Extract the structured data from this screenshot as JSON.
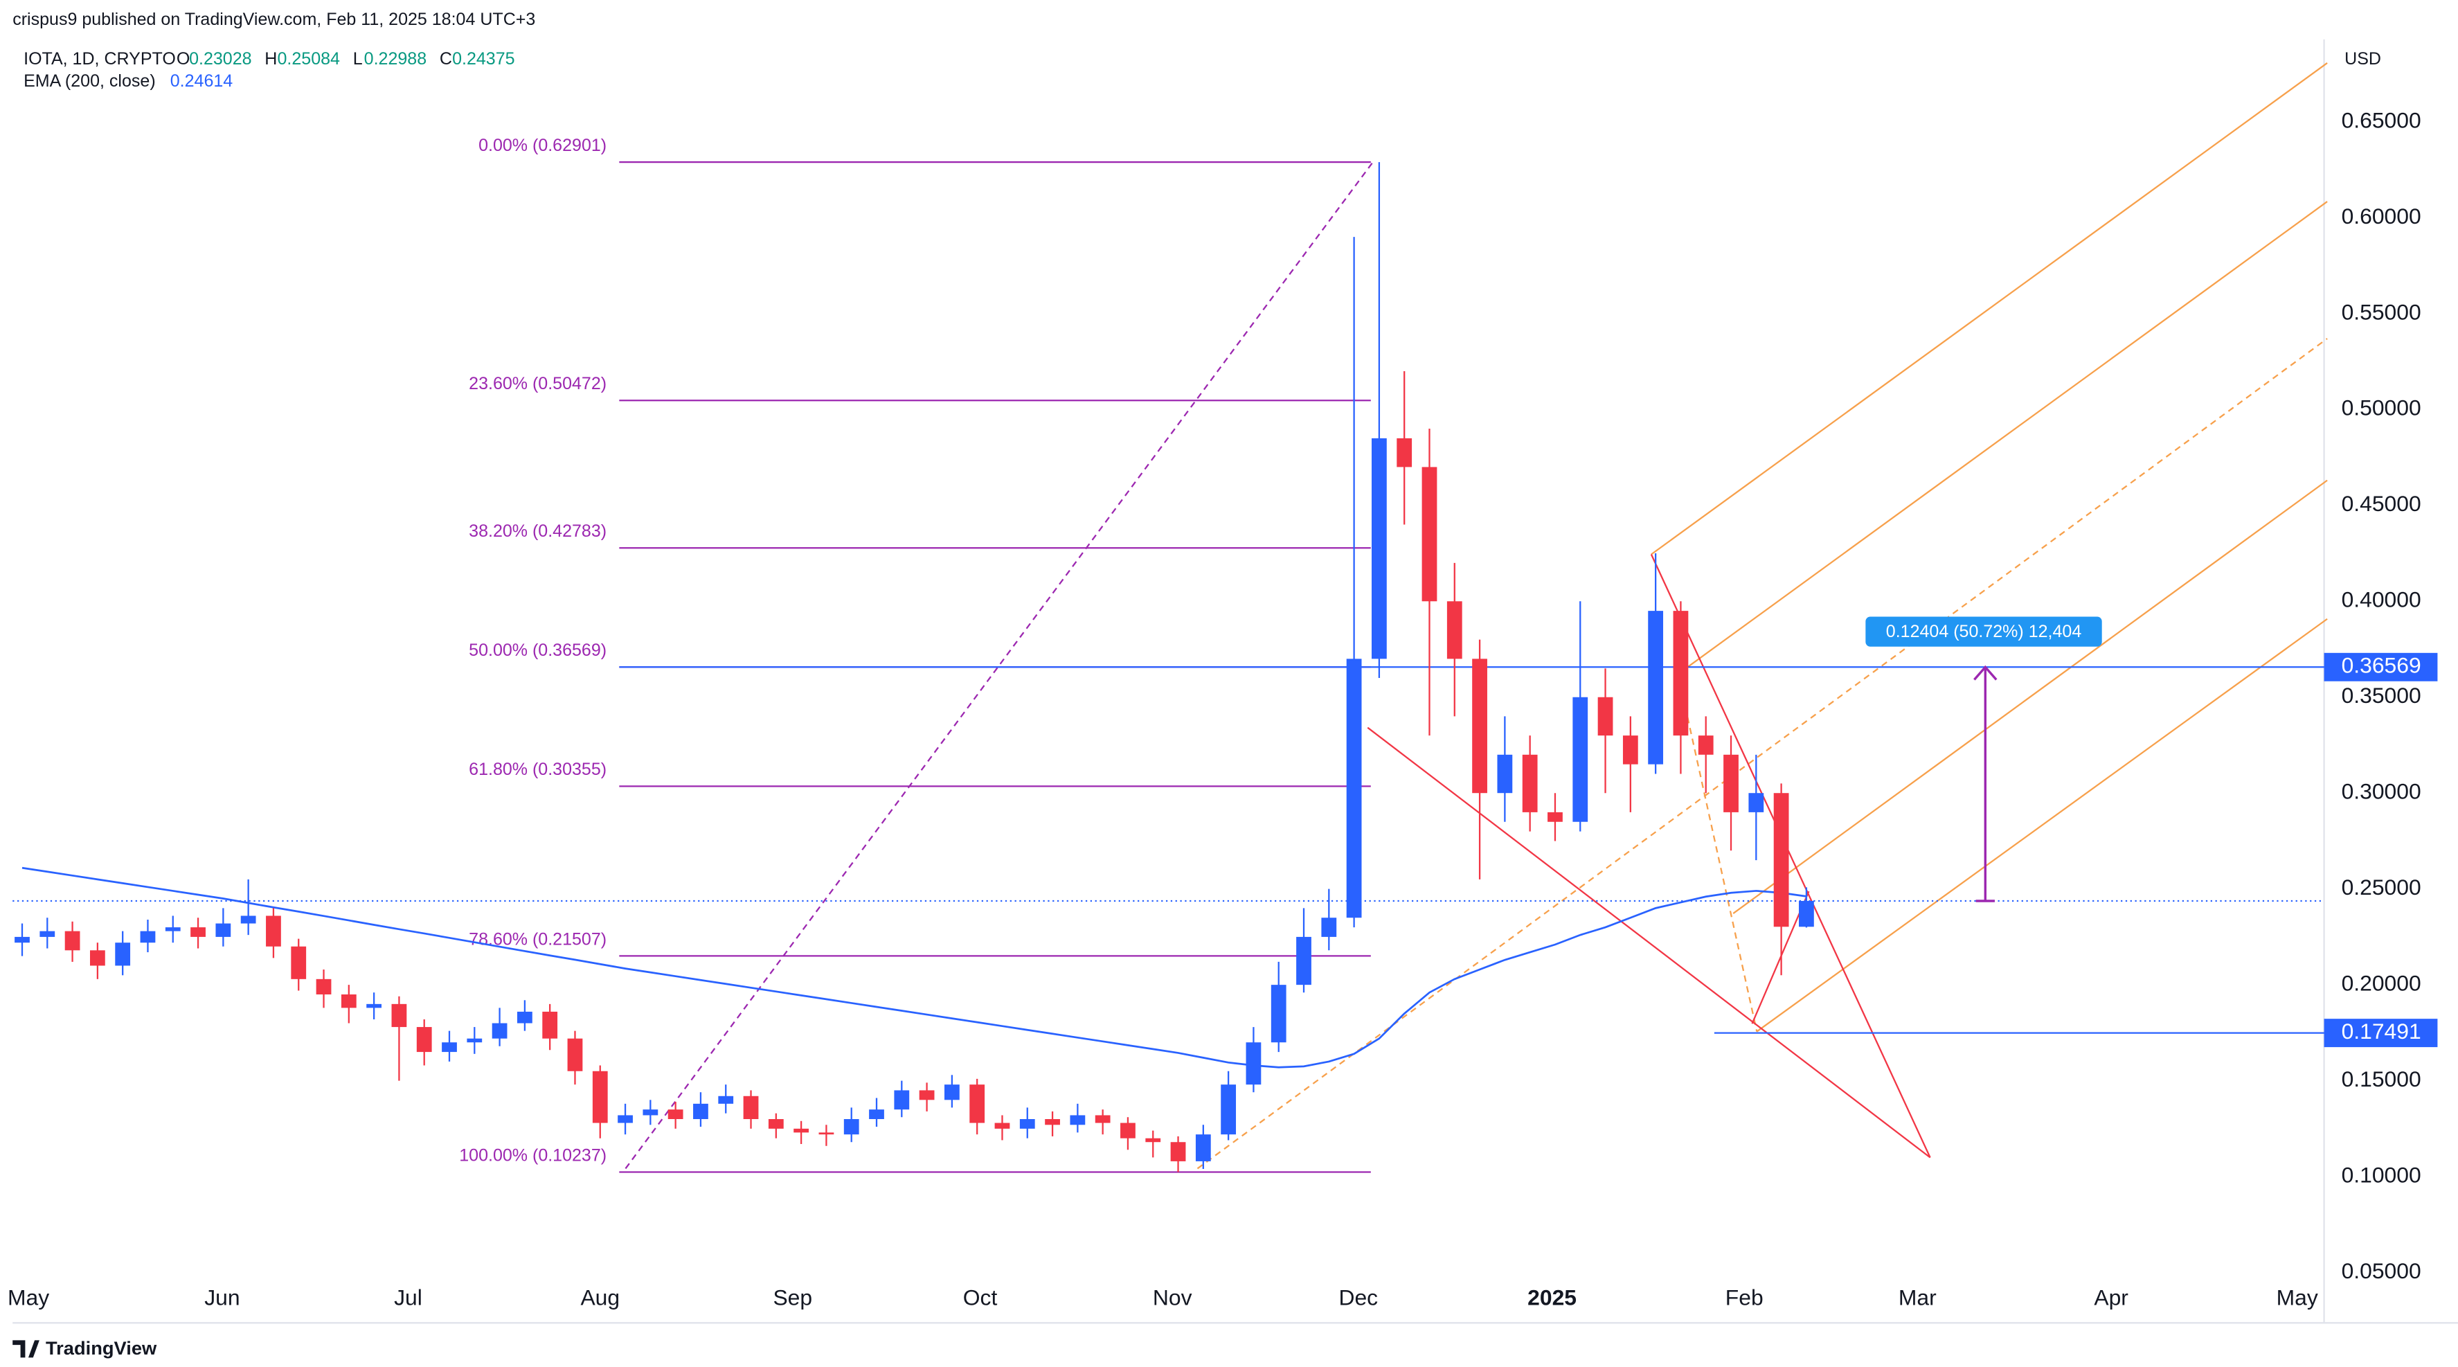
{
  "chart_data": {
    "type": "candlestick",
    "publisher": "crispus9 published on TradingView.com, Feb 11, 2025 18:04 UTC+3",
    "symbol": "IOTA, 1D, CRYPTO",
    "ohlc_letters": [
      "O",
      "H",
      "L",
      "C"
    ],
    "currency": "USD",
    "brand": "TradingView",
    "categories": [
      null,
      null,
      null,
      null,
      null,
      null,
      null,
      null,
      null,
      null,
      null,
      null,
      null,
      null,
      null,
      null,
      null,
      null,
      null,
      null,
      null,
      null,
      null,
      null,
      null,
      null,
      null,
      null,
      null,
      null,
      null,
      null,
      null,
      null,
      null,
      null,
      null,
      null,
      null,
      null,
      null,
      null,
      null,
      null,
      null,
      null,
      null,
      null,
      null,
      null,
      null,
      null,
      null,
      null,
      null,
      null,
      null,
      null,
      null,
      null,
      null,
      null,
      null,
      null,
      null,
      null,
      null,
      null,
      null,
      null,
      null,
      null
    ],
    "candles": {
      "up_color": "#2962ff",
      "down_color": "#f23645",
      "open": [
        0.222,
        0.225,
        0.228,
        0.218,
        0.21,
        0.222,
        0.228,
        0.23,
        0.225,
        0.232,
        0.236,
        0.22,
        0.203,
        0.195,
        0.188,
        0.19,
        0.178,
        0.165,
        0.17,
        0.172,
        0.18,
        0.186,
        0.172,
        0.155,
        0.128,
        0.132,
        0.135,
        0.13,
        0.138,
        0.142,
        0.13,
        0.125,
        0.123,
        0.122,
        0.13,
        0.135,
        0.145,
        0.14,
        0.148,
        0.128,
        0.125,
        0.13,
        0.127,
        0.132,
        0.128,
        0.12,
        0.118,
        0.108,
        0.122,
        0.148,
        0.17,
        0.2,
        0.225,
        0.235,
        0.37,
        0.485,
        0.47,
        0.4,
        0.37,
        0.3,
        0.32,
        0.29,
        0.285,
        0.35,
        0.33,
        0.315,
        0.395,
        0.33,
        0.32,
        0.29,
        0.3,
        0.23028
      ],
      "high": [
        0.232,
        0.235,
        0.233,
        0.222,
        0.228,
        0.234,
        0.236,
        0.235,
        0.24,
        0.255,
        0.24,
        0.224,
        0.208,
        0.2,
        0.196,
        0.194,
        0.182,
        0.176,
        0.178,
        0.188,
        0.192,
        0.19,
        0.176,
        0.158,
        0.138,
        0.14,
        0.139,
        0.144,
        0.148,
        0.145,
        0.133,
        0.129,
        0.127,
        0.136,
        0.141,
        0.15,
        0.149,
        0.153,
        0.151,
        0.132,
        0.136,
        0.134,
        0.138,
        0.135,
        0.131,
        0.124,
        0.121,
        0.127,
        0.155,
        0.178,
        0.212,
        0.24,
        0.25,
        0.59,
        0.62901,
        0.52,
        0.49,
        0.42,
        0.38,
        0.34,
        0.33,
        0.3,
        0.4,
        0.365,
        0.34,
        0.425,
        0.4,
        0.34,
        0.33,
        0.32,
        0.305,
        0.25084
      ],
      "low": [
        0.215,
        0.219,
        0.212,
        0.203,
        0.205,
        0.217,
        0.222,
        0.219,
        0.22,
        0.226,
        0.214,
        0.197,
        0.188,
        0.18,
        0.182,
        0.15,
        0.158,
        0.16,
        0.164,
        0.168,
        0.176,
        0.166,
        0.148,
        0.12,
        0.122,
        0.127,
        0.125,
        0.126,
        0.133,
        0.125,
        0.12,
        0.117,
        0.116,
        0.118,
        0.126,
        0.131,
        0.134,
        0.136,
        0.122,
        0.119,
        0.12,
        0.121,
        0.123,
        0.122,
        0.114,
        0.11,
        0.10237,
        0.104,
        0.119,
        0.144,
        0.165,
        0.196,
        0.218,
        0.23,
        0.36,
        0.44,
        0.33,
        0.34,
        0.255,
        0.285,
        0.28,
        0.275,
        0.28,
        0.3,
        0.29,
        0.31,
        0.31,
        0.3,
        0.27,
        0.265,
        0.205,
        0.22988
      ],
      "close": [
        0.225,
        0.228,
        0.218,
        0.21,
        0.222,
        0.228,
        0.23,
        0.225,
        0.232,
        0.236,
        0.22,
        0.203,
        0.195,
        0.188,
        0.19,
        0.178,
        0.165,
        0.17,
        0.172,
        0.18,
        0.186,
        0.172,
        0.155,
        0.128,
        0.132,
        0.135,
        0.13,
        0.138,
        0.142,
        0.13,
        0.125,
        0.123,
        0.122,
        0.13,
        0.135,
        0.145,
        0.14,
        0.148,
        0.128,
        0.125,
        0.13,
        0.127,
        0.132,
        0.128,
        0.12,
        0.118,
        0.108,
        0.122,
        0.148,
        0.17,
        0.2,
        0.225,
        0.235,
        0.37,
        0.485,
        0.47,
        0.4,
        0.37,
        0.3,
        0.32,
        0.29,
        0.285,
        0.35,
        0.33,
        0.315,
        0.395,
        0.33,
        0.32,
        0.29,
        0.3,
        0.23028,
        0.24375
      ]
    },
    "series": [
      {
        "name": "EMA (200, close)",
        "color": "#2962ff",
        "values": [
          0.261,
          0.259,
          0.257,
          0.255,
          0.253,
          0.251,
          0.249,
          0.247,
          0.245,
          0.2427,
          0.2404,
          0.2382,
          0.2359,
          0.2336,
          0.2313,
          0.229,
          0.2268,
          0.2245,
          0.2222,
          0.2199,
          0.2176,
          0.2153,
          0.2131,
          0.2108,
          0.2085,
          0.2065,
          0.2045,
          0.2025,
          0.2005,
          0.1985,
          0.1965,
          0.1945,
          0.1925,
          0.1905,
          0.1885,
          0.1865,
          0.1845,
          0.1825,
          0.1805,
          0.1785,
          0.1765,
          0.1745,
          0.1725,
          0.1705,
          0.1685,
          0.1665,
          0.1645,
          0.162,
          0.1595,
          0.158,
          0.157,
          0.1575,
          0.16,
          0.164,
          0.172,
          0.185,
          0.196,
          0.203,
          0.208,
          0.213,
          0.217,
          0.221,
          0.226,
          0.23,
          0.235,
          0.24,
          0.243,
          0.246,
          0.248,
          0.249,
          0.248,
          0.24614
        ]
      }
    ],
    "fib_levels": [
      {
        "label": "0.00% (0.62901)",
        "value": 0.62901
      },
      {
        "label": "23.60% (0.50472)",
        "value": 0.50472
      },
      {
        "label": "38.20% (0.42783)",
        "value": 0.42783
      },
      {
        "label": "50.00% (0.36569)",
        "value": 0.36569
      },
      {
        "label": "61.80% (0.30355)",
        "value": 0.30355
      },
      {
        "label": "78.60% (0.21507)",
        "value": 0.21507
      },
      {
        "label": "100.00% (0.10237)",
        "value": 0.10237
      }
    ],
    "levels": [
      0.17491
    ],
    "measure_label": "0.12404 (50.72%) 12,404",
    "xlim": [
      -0.38,
      91.6
    ],
    "xticks": [
      {
        "value": 0.25,
        "label": "May"
      },
      {
        "value": 7.96,
        "label": "Jun"
      },
      {
        "value": 15.36,
        "label": "Jul"
      },
      {
        "value": 23.0,
        "label": "Aug"
      },
      {
        "value": 30.66,
        "label": "Sep"
      },
      {
        "value": 38.12,
        "label": "Oct"
      },
      {
        "value": 45.77,
        "label": "Nov"
      },
      {
        "value": 53.17,
        "label": "Dec"
      },
      {
        "value": 60.88,
        "label": "2025",
        "bold": true
      },
      {
        "value": 68.53,
        "label": "Feb"
      },
      {
        "value": 75.42,
        "label": "Mar"
      },
      {
        "value": 83.13,
        "label": "Apr"
      },
      {
        "value": 90.53,
        "label": "May"
      }
    ],
    "ylim": [
      0.05,
      0.693
    ],
    "yticks": [
      {
        "value": 0.05,
        "label": "0.05000"
      },
      {
        "value": 0.1,
        "label": "0.10000"
      },
      {
        "value": 0.15,
        "label": "0.15000"
      },
      {
        "value": 0.2,
        "label": "0.20000"
      },
      {
        "value": 0.25,
        "label": "0.25000"
      },
      {
        "value": 0.3,
        "label": "0.30000"
      },
      {
        "value": 0.35,
        "label": "0.35000"
      },
      {
        "value": 0.4,
        "label": "0.40000"
      },
      {
        "value": 0.45,
        "label": "0.45000"
      },
      {
        "value": 0.5,
        "label": "0.50000"
      },
      {
        "value": 0.55,
        "label": "0.55000"
      },
      {
        "value": 0.6,
        "label": "0.60000"
      },
      {
        "value": 0.65,
        "label": "0.65000"
      }
    ],
    "grid": false
  }
}
